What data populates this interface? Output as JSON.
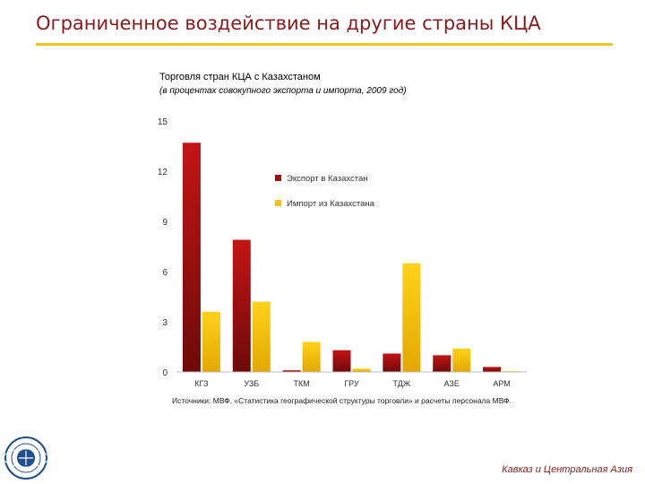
{
  "slide": {
    "title": "Ограниченное воздействие на другие страны КЦА",
    "footer": "Кавказ и Центральная Азия"
  },
  "colors": {
    "title": "#8b1a1a",
    "rule": "#f1c31c",
    "export": "#a50d0d",
    "import": "#f2c200",
    "footer": "#8b1a1a"
  },
  "logo": {
    "icon": "imf-seal-icon"
  },
  "chart_data": {
    "type": "bar",
    "title": "Торговля стран КЦА с Казахстаном",
    "subtitle": "(в процентах совокупного экспорта и импорта, 2009 год)",
    "categories": [
      "КГЗ",
      "УЗБ",
      "ТКМ",
      "ГРУ",
      "ТДЖ",
      "АЗЕ",
      "АРМ"
    ],
    "series": [
      {
        "name": "Экспорт в Казахстан",
        "values": [
          13.7,
          7.9,
          0.1,
          1.3,
          1.1,
          1.0,
          0.3
        ]
      },
      {
        "name": "Импорт из Казахстана",
        "values": [
          3.6,
          4.2,
          1.8,
          0.2,
          6.5,
          1.4,
          0.05
        ]
      }
    ],
    "yticks": [
      0,
      3,
      6,
      9,
      12,
      15
    ],
    "ylim": [
      0,
      15
    ],
    "grid": false,
    "legend_position": "top-right",
    "source": "Источники: МВФ, «Статистика географической структуры торговли» и расчеты персонала МВФ."
  }
}
